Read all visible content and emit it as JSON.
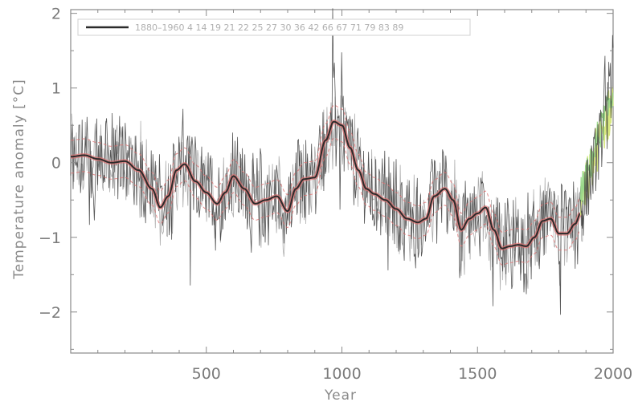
{
  "chart_data": {
    "type": "line",
    "title": "",
    "xlabel": "Year",
    "ylabel": "Temperature anomaly [°C]",
    "xlim": [
      0,
      2000
    ],
    "ylim": [
      -2.55,
      2.05
    ],
    "xticks": [
      500,
      1000,
      1500,
      2000
    ],
    "yticks": [
      -2,
      -1,
      0,
      1,
      2
    ],
    "grid": false,
    "legend": {
      "placement": "top-left",
      "entry": "1880–1960",
      "extra_labels": [
        "4",
        "14",
        "19",
        "21",
        "22",
        "25",
        "27",
        "30",
        "36",
        "42",
        "66",
        "67",
        "71",
        "79",
        "83",
        "89"
      ]
    },
    "colors": {
      "raw": "#3a3a3a",
      "raw_light": "#9a9a9a",
      "smooth": "#2b2b2b",
      "smooth_halo": "#e07070",
      "band": "#e07070",
      "instrumental_1": "#d8e880",
      "instrumental_2": "#9ad88a"
    },
    "series": [
      {
        "name": "1880–1960",
        "role": "smoothed",
        "x": [
          0,
          50,
          100,
          150,
          200,
          250,
          300,
          330,
          360,
          390,
          420,
          460,
          500,
          540,
          570,
          600,
          640,
          680,
          720,
          760,
          800,
          830,
          860,
          900,
          940,
          970,
          1000,
          1030,
          1060,
          1090,
          1120,
          1160,
          1200,
          1240,
          1280,
          1310,
          1340,
          1380,
          1410,
          1440,
          1470,
          1500,
          1530,
          1560,
          1590,
          1620,
          1650,
          1680,
          1710,
          1740,
          1770,
          1800,
          1830,
          1860,
          1880
        ],
        "y": [
          0.08,
          0.1,
          0.05,
          0.0,
          0.02,
          -0.1,
          -0.35,
          -0.6,
          -0.45,
          -0.1,
          -0.02,
          -0.25,
          -0.4,
          -0.55,
          -0.4,
          -0.18,
          -0.35,
          -0.55,
          -0.5,
          -0.45,
          -0.65,
          -0.35,
          -0.22,
          -0.2,
          0.3,
          0.55,
          0.5,
          0.2,
          -0.1,
          -0.35,
          -0.42,
          -0.5,
          -0.62,
          -0.75,
          -0.8,
          -0.75,
          -0.45,
          -0.35,
          -0.5,
          -0.9,
          -0.75,
          -0.68,
          -0.6,
          -0.9,
          -1.15,
          -1.12,
          -1.1,
          -1.12,
          -1.0,
          -0.78,
          -0.75,
          -0.95,
          -0.95,
          -0.82,
          -0.68
        ]
      }
    ],
    "instrumental_record": {
      "x": [
        1880,
        1900,
        1920,
        1940,
        1960,
        1980,
        2000
      ],
      "y": [
        -0.55,
        -0.3,
        -0.1,
        0.2,
        0.4,
        0.6,
        0.85
      ]
    }
  }
}
